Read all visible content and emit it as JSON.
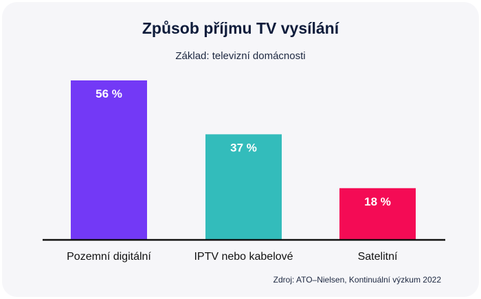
{
  "chart_data": {
    "type": "bar",
    "title": "Způsob příjmu TV vysílání",
    "subtitle": "Základ: televizní domácnosti",
    "categories": [
      "Pozemní digitální",
      "IPTV nebo kabelové",
      "Satelitní"
    ],
    "values": [
      56,
      37,
      18
    ],
    "data_labels": [
      "56 %",
      "37 %",
      "18 %"
    ],
    "colors": [
      "#7339f6",
      "#33bcbb",
      "#f40b55"
    ],
    "unit": "%",
    "ylim": [
      0,
      56
    ],
    "grid": false,
    "source": "Zdroj: ATO–Nielsen, Kontinuální výzkum 2022"
  }
}
